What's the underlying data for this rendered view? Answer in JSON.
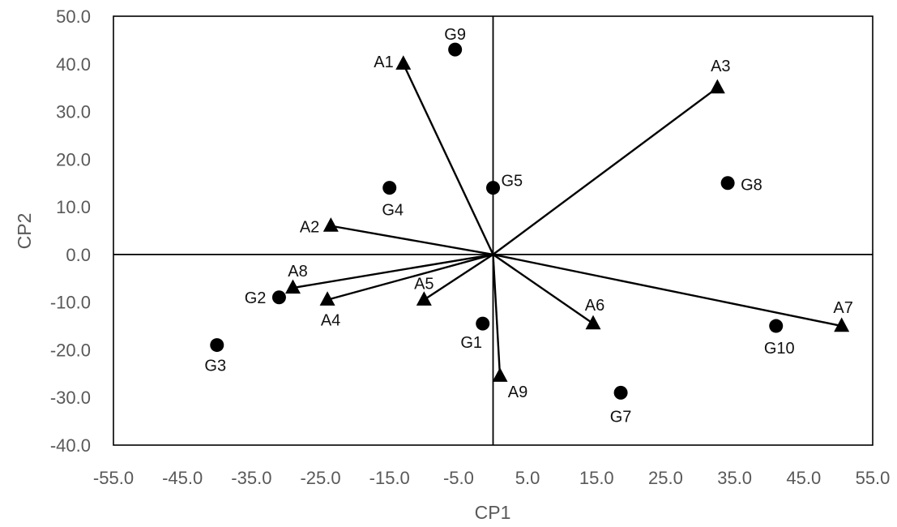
{
  "chart_data": {
    "type": "scatter",
    "title": "",
    "xlabel": "CP1",
    "ylabel": "CP2",
    "xlim": [
      -55,
      55
    ],
    "ylim": [
      -40,
      50
    ],
    "x_ticks": [
      "-55.0",
      "-45.0",
      "-35.0",
      "-25.0",
      "-15.0",
      "-5.0",
      "5.0",
      "15.0",
      "25.0",
      "35.0",
      "45.0",
      "55.0"
    ],
    "x_tick_values": [
      -55,
      -45,
      -35,
      -25,
      -15,
      -5,
      5,
      15,
      25,
      35,
      45,
      55
    ],
    "y_ticks": [
      "50.0",
      "40.0",
      "30.0",
      "20.0",
      "10.0",
      "0.0",
      "-10.0",
      "-20.0",
      "-30.0",
      "-40.0"
    ],
    "y_tick_values": [
      50,
      40,
      30,
      20,
      10,
      0,
      -10,
      -20,
      -30,
      -40
    ],
    "grid": false,
    "series": [
      {
        "marker": "circle",
        "points": [
          {
            "label": "G1",
            "x": -1.5,
            "y": -14.5
          },
          {
            "label": "G2",
            "x": -31.0,
            "y": -9.0
          },
          {
            "label": "G3",
            "x": -40.0,
            "y": -19.0
          },
          {
            "label": "G4",
            "x": -15.0,
            "y": 14.0
          },
          {
            "label": "G5",
            "x": 0.0,
            "y": 14.0
          },
          {
            "label": "G7",
            "x": 18.5,
            "y": -29.0
          },
          {
            "label": "G8",
            "x": 34.0,
            "y": 15.0
          },
          {
            "label": "G9",
            "x": -5.5,
            "y": 43.0
          },
          {
            "label": "G10",
            "x": 41.0,
            "y": -15.0
          }
        ]
      },
      {
        "marker": "triangle",
        "vectors_from_origin": true,
        "points": [
          {
            "label": "A1",
            "x": -13.0,
            "y": 40.0
          },
          {
            "label": "A2",
            "x": -23.5,
            "y": 6.0
          },
          {
            "label": "A3",
            "x": 32.5,
            "y": 35.0
          },
          {
            "label": "A4",
            "x": -24.0,
            "y": -9.5
          },
          {
            "label": "A5",
            "x": -10.0,
            "y": -9.5
          },
          {
            "label": "A6",
            "x": 14.5,
            "y": -14.5
          },
          {
            "label": "A7",
            "x": 50.5,
            "y": -15.0
          },
          {
            "label": "A8",
            "x": -29.0,
            "y": -7.0
          },
          {
            "label": "A9",
            "x": 1.0,
            "y": -25.5
          }
        ]
      }
    ]
  }
}
